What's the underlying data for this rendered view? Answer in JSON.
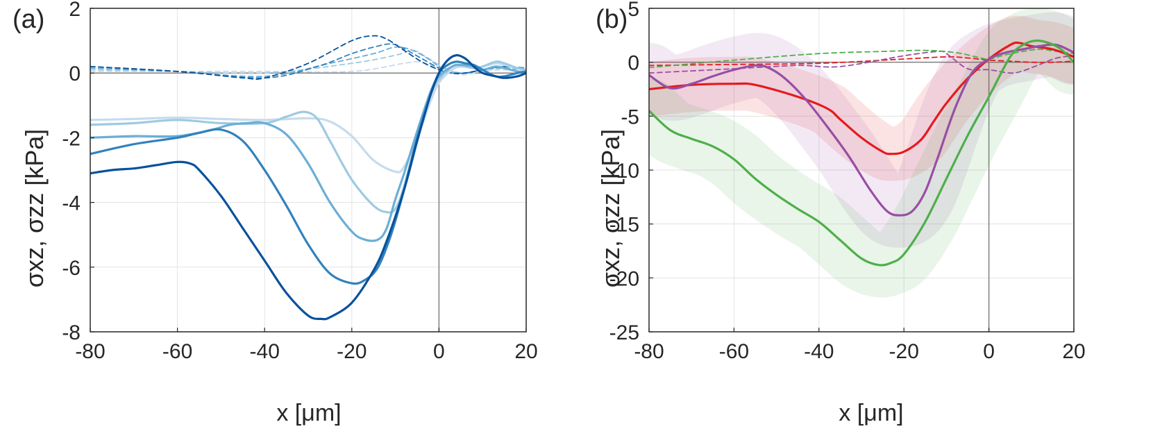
{
  "figure": {
    "panels": [
      {
        "label": "(a)",
        "xlabel": "x [μm]",
        "ylabel": "σxz, σzz [kPa]"
      },
      {
        "label": "(b)",
        "xlabel": "x [μm]",
        "ylabel": "σxz, σzz [kPa]"
      }
    ]
  },
  "chart_data": [
    {
      "type": "line",
      "title": "",
      "panel_label": "(a)",
      "xlabel": "x [μm]",
      "ylabel": "σxz, σzz [kPa]",
      "xlim": [
        -80,
        20
      ],
      "ylim": [
        -8,
        2
      ],
      "xticks": [
        -80,
        -60,
        -40,
        -20,
        0,
        20
      ],
      "yticks": [
        -8,
        -6,
        -4,
        -2,
        0,
        2
      ],
      "grid": true,
      "legend": "none",
      "series": [
        {
          "role": "solid",
          "color": "#c6dbef",
          "x": [
            -80,
            -70,
            -60,
            -50,
            -40,
            -30,
            -25,
            -20,
            -15,
            -10,
            -8,
            -5,
            -2,
            0,
            3,
            5,
            8,
            10,
            13,
            15,
            18,
            20
          ],
          "y": [
            -1.45,
            -1.42,
            -1.38,
            -1.42,
            -1.45,
            -1.4,
            -1.5,
            -1.95,
            -2.7,
            -3.05,
            -2.9,
            -2.0,
            -0.9,
            -0.3,
            0.1,
            0.2,
            0.15,
            0.2,
            0.3,
            0.25,
            0.15,
            0.1
          ]
        },
        {
          "role": "solid",
          "color": "#9ecae1",
          "x": [
            -80,
            -70,
            -60,
            -50,
            -40,
            -35,
            -31,
            -28,
            -25,
            -20,
            -15,
            -12,
            -10,
            -8,
            -5,
            -2,
            0,
            3,
            5,
            8,
            10,
            13,
            15,
            18,
            20
          ],
          "y": [
            -1.6,
            -1.55,
            -1.45,
            -1.55,
            -1.55,
            -1.35,
            -1.2,
            -1.4,
            -2.1,
            -3.3,
            -4.1,
            -4.3,
            -4.2,
            -3.5,
            -2.0,
            -0.7,
            -0.2,
            0.2,
            0.25,
            0.15,
            0.2,
            0.35,
            0.3,
            0.15,
            0.1
          ]
        },
        {
          "role": "solid",
          "color": "#6baed6",
          "x": [
            -80,
            -70,
            -60,
            -52,
            -48,
            -44,
            -40,
            -35,
            -30,
            -25,
            -20,
            -17,
            -14,
            -12,
            -10,
            -8,
            -5,
            -2,
            0,
            3,
            5,
            8,
            10,
            13,
            15,
            18,
            20
          ],
          "y": [
            -2.0,
            -1.95,
            -1.95,
            -1.75,
            -1.6,
            -1.55,
            -1.55,
            -1.9,
            -2.8,
            -4.0,
            -4.9,
            -5.15,
            -5.15,
            -4.8,
            -3.9,
            -3.1,
            -1.8,
            -0.6,
            -0.1,
            0.2,
            0.25,
            0.2,
            0.1,
            0.2,
            0.15,
            0.05,
            0.0
          ]
        },
        {
          "role": "solid",
          "color": "#3182bd",
          "x": [
            -80,
            -70,
            -60,
            -55,
            -50,
            -45,
            -40,
            -35,
            -30,
            -25,
            -20,
            -17,
            -14,
            -11,
            -8,
            -5,
            -2,
            0,
            2,
            4,
            6,
            8,
            10,
            13,
            15,
            18,
            20
          ],
          "y": [
            -2.5,
            -2.2,
            -2.0,
            -1.85,
            -1.75,
            -2.1,
            -3.0,
            -4.1,
            -5.3,
            -6.2,
            -6.5,
            -6.4,
            -6.0,
            -5.0,
            -3.6,
            -2.0,
            -0.7,
            0.0,
            0.25,
            0.35,
            0.3,
            0.25,
            0.1,
            -0.1,
            -0.1,
            0.0,
            0.05
          ]
        },
        {
          "role": "solid",
          "color": "#08519c",
          "x": [
            -80,
            -75,
            -70,
            -65,
            -60,
            -57,
            -55,
            -50,
            -45,
            -40,
            -35,
            -30,
            -27,
            -25,
            -20,
            -15,
            -12,
            -8,
            -5,
            -2,
            0,
            2,
            4,
            6,
            8,
            10,
            13,
            15,
            18,
            20
          ],
          "y": [
            -3.1,
            -3.0,
            -2.95,
            -2.85,
            -2.75,
            -2.8,
            -3.0,
            -3.8,
            -4.8,
            -5.8,
            -6.8,
            -7.5,
            -7.6,
            -7.55,
            -7.1,
            -6.1,
            -5.2,
            -3.6,
            -2.1,
            -0.7,
            0.0,
            0.4,
            0.55,
            0.45,
            0.2,
            0.0,
            -0.1,
            -0.15,
            -0.1,
            0.0
          ]
        },
        {
          "role": "dashed",
          "color": "#c6dbef",
          "x": [
            -80,
            -60,
            -40,
            -20,
            -8,
            -5,
            -2,
            0,
            3,
            6,
            10,
            15,
            20
          ],
          "y": [
            0.05,
            0.05,
            0.05,
            0.05,
            0.3,
            0.35,
            0.25,
            0.1,
            0.0,
            -0.05,
            0.05,
            0.1,
            0.05
          ]
        },
        {
          "role": "dashed",
          "color": "#9ecae1",
          "x": [
            -80,
            -60,
            -40,
            -20,
            -10,
            -6,
            -3,
            0,
            3,
            6,
            10,
            15,
            20
          ],
          "y": [
            0.1,
            0.05,
            0.0,
            0.3,
            0.55,
            0.7,
            0.5,
            0.25,
            0.05,
            0.0,
            0.1,
            0.2,
            0.1
          ]
        },
        {
          "role": "dashed",
          "color": "#6baed6",
          "x": [
            -80,
            -60,
            -40,
            -25,
            -15,
            -10,
            -6,
            -2,
            0,
            3,
            6,
            10,
            15,
            20
          ],
          "y": [
            0.15,
            0.05,
            -0.1,
            0.3,
            0.6,
            0.8,
            0.7,
            0.4,
            0.2,
            0.05,
            0.0,
            0.1,
            0.15,
            0.1
          ]
        },
        {
          "role": "dashed",
          "color": "#3182bd",
          "x": [
            -80,
            -60,
            -40,
            -28,
            -20,
            -15,
            -11,
            -8,
            -4,
            0,
            3,
            6,
            10,
            15,
            20
          ],
          "y": [
            0.2,
            0.05,
            -0.15,
            0.2,
            0.6,
            0.8,
            0.9,
            0.75,
            0.45,
            0.15,
            0.0,
            0.0,
            0.1,
            0.2,
            0.15
          ]
        },
        {
          "role": "dashed",
          "color": "#08519c",
          "x": [
            -80,
            -60,
            -45,
            -40,
            -30,
            -20,
            -15,
            -12,
            -8,
            -4,
            0,
            3,
            6,
            10,
            15,
            20
          ],
          "y": [
            0.2,
            0.05,
            -0.15,
            -0.15,
            0.3,
            1.0,
            1.15,
            1.05,
            0.7,
            0.35,
            0.1,
            0.0,
            0.0,
            0.1,
            0.2,
            0.1
          ]
        }
      ]
    },
    {
      "type": "line",
      "title": "",
      "panel_label": "(b)",
      "xlabel": "x [μm]",
      "ylabel": "σxz, σzz [kPa]",
      "xlim": [
        -80,
        20
      ],
      "ylim": [
        -25,
        5
      ],
      "xticks": [
        -80,
        -60,
        -40,
        -20,
        0,
        20
      ],
      "yticks": [
        -25,
        -20,
        -15,
        -10,
        -5,
        0,
        5
      ],
      "grid": true,
      "legend": "none",
      "series": [
        {
          "role": "solid",
          "color": "#e41a1c",
          "band": 2.5,
          "x": [
            -80,
            -70,
            -60,
            -55,
            -45,
            -38,
            -35,
            -30,
            -25,
            -23,
            -20,
            -16,
            -13,
            -10,
            -5,
            0,
            5,
            7,
            10,
            15,
            20
          ],
          "y": [
            -2.5,
            -2.1,
            -2.0,
            -2.1,
            -3.2,
            -4.3,
            -5.3,
            -7.0,
            -8.3,
            -8.5,
            -8.3,
            -7.2,
            -5.5,
            -3.8,
            -1.5,
            0.3,
            1.6,
            1.8,
            1.5,
            1.2,
            0.5
          ]
        },
        {
          "role": "solid",
          "color": "#984ea3",
          "band": 3.0,
          "x": [
            -80,
            -75,
            -70,
            -65,
            -60,
            -55,
            -52,
            -48,
            -43,
            -38,
            -33,
            -28,
            -24,
            -21,
            -18,
            -15,
            -12,
            -8,
            -4,
            0,
            4,
            8,
            12,
            16,
            20
          ],
          "y": [
            -1.2,
            -2.4,
            -2.0,
            -1.3,
            -0.7,
            -0.3,
            -0.5,
            -1.5,
            -3.5,
            -6.0,
            -8.7,
            -11.8,
            -13.8,
            -14.2,
            -13.8,
            -12.0,
            -8.8,
            -4.3,
            -1.0,
            0.3,
            0.9,
            1.2,
            1.5,
            1.6,
            0.9
          ]
        },
        {
          "role": "solid",
          "color": "#4daf4a",
          "band": 3.0,
          "x": [
            -80,
            -75,
            -70,
            -65,
            -60,
            -55,
            -50,
            -45,
            -40,
            -35,
            -30,
            -26,
            -23,
            -20,
            -15,
            -10,
            -5,
            0,
            5,
            8,
            11,
            14,
            17,
            20
          ],
          "y": [
            -4.5,
            -6.3,
            -7.1,
            -7.8,
            -9.0,
            -10.8,
            -12.3,
            -13.6,
            -14.8,
            -16.5,
            -18.2,
            -18.8,
            -18.6,
            -17.8,
            -14.8,
            -10.8,
            -6.8,
            -3.2,
            0.5,
            1.6,
            2.0,
            1.8,
            1.2,
            0.0
          ]
        },
        {
          "role": "dashed",
          "color": "#e41a1c",
          "x": [
            -80,
            -60,
            -40,
            -20,
            -10,
            -5,
            0,
            5,
            10,
            15,
            20
          ],
          "y": [
            -0.3,
            -0.2,
            -0.1,
            0.3,
            0.5,
            0.4,
            0.2,
            0.1,
            0.0,
            0.0,
            0.1
          ]
        },
        {
          "role": "dashed",
          "color": "#984ea3",
          "x": [
            -80,
            -70,
            -60,
            -45,
            -35,
            -20,
            -12,
            -10,
            -5,
            0,
            5,
            8,
            12,
            16,
            20
          ],
          "y": [
            -1.0,
            -0.8,
            -0.6,
            -0.3,
            -0.4,
            0.6,
            1.0,
            0.8,
            -0.6,
            -0.7,
            -1.0,
            -0.8,
            -0.2,
            0.4,
            0.6
          ]
        },
        {
          "role": "dashed",
          "color": "#4daf4a",
          "x": [
            -80,
            -60,
            -40,
            -25,
            -15,
            -8,
            -3,
            0,
            4,
            8,
            12,
            16,
            20
          ],
          "y": [
            -0.5,
            0.2,
            0.8,
            1.0,
            1.1,
            0.9,
            0.5,
            0.3,
            0.7,
            1.0,
            1.2,
            1.0,
            0.8
          ]
        }
      ]
    }
  ]
}
